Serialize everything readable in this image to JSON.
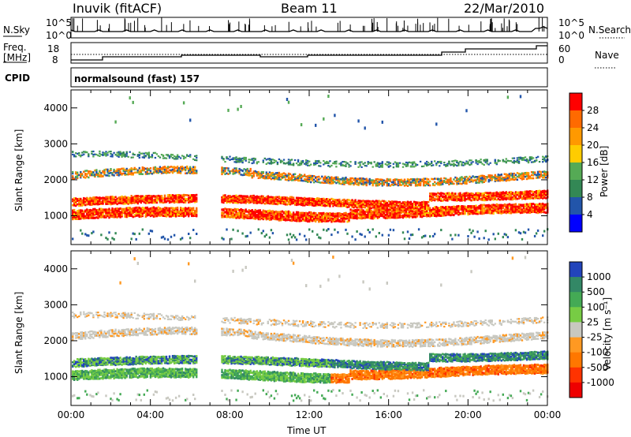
{
  "header": {
    "station": "Inuvik (fitACF)",
    "beam": "Beam 11",
    "date": "22/Mar/2010"
  },
  "strips": {
    "nsky_label": "N.Sky",
    "nsky_ticks": [
      "10^5",
      "10^0"
    ],
    "nsearch_label": "N.Search",
    "nsearch_ticks": [
      "10^5",
      "10^0"
    ],
    "freq_label_1": "Freq.",
    "freq_label_2": "[MHz]",
    "freq_ticks": [
      "18",
      "8"
    ],
    "nave_label": "Nave",
    "nave_ticks": [
      "60",
      "0"
    ],
    "cpid_label": "CPID",
    "cpid_value": "normalsound (fast) 157"
  },
  "chart_data": [
    {
      "type": "heatmap",
      "panel": "power",
      "ylabel": "Slant Range [km]",
      "yticks": [
        "4000",
        "3000",
        "2000",
        "1000"
      ],
      "ylim": [
        200,
        4500
      ],
      "colorbar_label": "Power [dB]",
      "colorbar_ticks": [
        "28",
        "24",
        "20",
        "16",
        "12",
        "8",
        "4"
      ],
      "colorbar_colors": [
        "#ff0000",
        "#ff6a00",
        "#ff9900",
        "#ffcc00",
        "#55aa55",
        "#338855",
        "#2255aa",
        "#0000ff"
      ],
      "x_range_ut": [
        "00:00",
        "24:00"
      ],
      "data_gap_ut": [
        "06:20",
        "07:30"
      ],
      "scatter_bands": [
        {
          "range_km": 1000,
          "dominant": "red"
        },
        {
          "range_km": 1400,
          "dominant": "red"
        },
        {
          "range_km": 2100,
          "dominant": "orange"
        },
        {
          "range_km": 2500,
          "dominant": "green"
        }
      ]
    },
    {
      "type": "heatmap",
      "panel": "velocity",
      "ylabel": "Slant Range [km]",
      "yticks": [
        "4000",
        "3000",
        "2000",
        "1000"
      ],
      "ylim": [
        200,
        4500
      ],
      "xlabel": "Time UT",
      "xticks": [
        "00:00",
        "04:00",
        "08:00",
        "12:00",
        "16:00",
        "20:00",
        "00:00"
      ],
      "colorbar_label": "Velocity [m s⁻¹]",
      "colorbar_ticks": [
        "1000",
        "500",
        "100",
        "25",
        "-25",
        "-100",
        "-500",
        "-1000"
      ],
      "colorbar_colors": [
        "#2244bb",
        "#338866",
        "#44aa55",
        "#77cc44",
        "#c8c8c0",
        "#ff9922",
        "#ff7700",
        "#ff3300",
        "#ee0000"
      ],
      "x_range_ut": [
        "00:00",
        "24:00"
      ],
      "data_gap_ut": [
        "06:20",
        "07:30"
      ]
    }
  ]
}
